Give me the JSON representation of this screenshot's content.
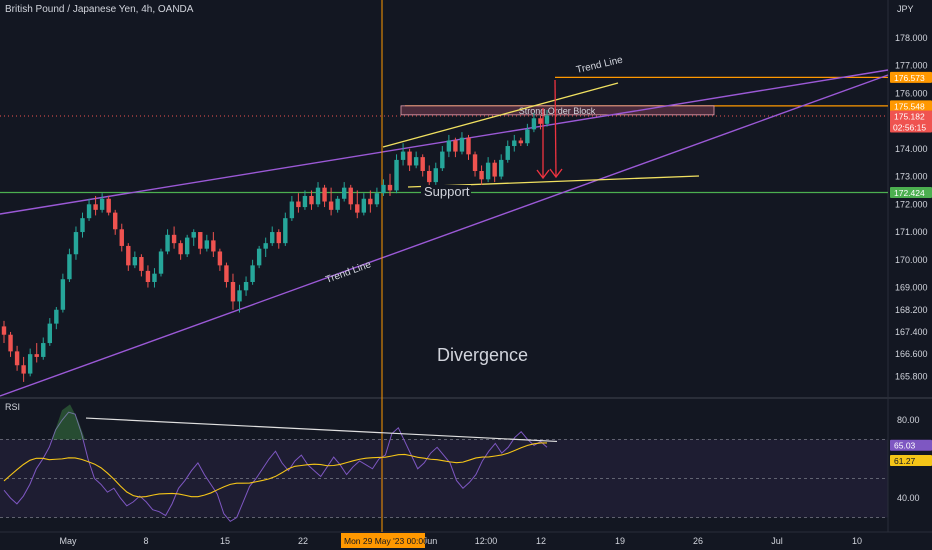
{
  "header": {
    "symbol_title": "British Pound / Japanese Yen, 4h, OANDA",
    "currency": "JPY"
  },
  "colors": {
    "background": "#131722",
    "up": "#26a69a",
    "down": "#ef5350",
    "channel": "#9b59d6",
    "wedge": "#f0e060",
    "support": "#4caf50",
    "cursor": "#ff9800",
    "order_block": "#5c3344",
    "rsi": "#7e57c2",
    "rsi_ma": "#f5c518",
    "arrow": "#ef3340"
  },
  "chart_data": [
    {
      "type": "candlestick",
      "title": "British Pound / Japanese Yen, 4h, OANDA",
      "ylim": [
        165.5,
        178.9
      ],
      "y_ticks": [
        "178.000",
        "177.000",
        "176.000",
        "175.000",
        "174.000",
        "173.000",
        "172.000",
        "171.000",
        "170.000",
        "169.000",
        "168.200",
        "167.400",
        "166.600",
        "165.800"
      ],
      "x_ticks": [
        "May",
        "8",
        "15",
        "22",
        "Jun",
        "12:00",
        "12",
        "19",
        "26",
        "Jul",
        "10"
      ],
      "price_labels": [
        {
          "value": 176.573,
          "text": "176.573",
          "color": "#ff9800"
        },
        {
          "value": 175.548,
          "text": "175.548",
          "color": "#ff9800"
        },
        {
          "value": 175.182,
          "text": "175.182",
          "sub": "02:56:15",
          "color": "#ef5350"
        },
        {
          "value": 172.424,
          "text": "172.424",
          "color": "#4caf50"
        }
      ],
      "annotations": {
        "trend_line_upper": "Trend Line",
        "trend_line_lower": "Trend Line",
        "order_block": "Strong Order Block",
        "support": "Support",
        "divergence": "Divergence"
      },
      "cursor_label": "Mon 29 May '23   00:00",
      "candles": [
        [
          167.6,
          167.8,
          167.0,
          167.3
        ],
        [
          167.3,
          167.4,
          166.5,
          166.7
        ],
        [
          166.7,
          166.9,
          166.0,
          166.2
        ],
        [
          166.2,
          166.5,
          165.6,
          165.9
        ],
        [
          165.9,
          166.8,
          165.8,
          166.6
        ],
        [
          166.6,
          167.0,
          166.3,
          166.5
        ],
        [
          166.5,
          167.2,
          166.4,
          167.0
        ],
        [
          167.0,
          167.9,
          166.9,
          167.7
        ],
        [
          167.7,
          168.3,
          167.5,
          168.2
        ],
        [
          168.2,
          169.5,
          168.1,
          169.3
        ],
        [
          169.3,
          170.4,
          169.2,
          170.2
        ],
        [
          170.2,
          171.2,
          170.0,
          171.0
        ],
        [
          171.0,
          171.7,
          170.8,
          171.5
        ],
        [
          171.5,
          172.2,
          171.4,
          172.0
        ],
        [
          172.0,
          172.3,
          171.6,
          171.8
        ],
        [
          171.8,
          172.4,
          171.7,
          172.2
        ],
        [
          172.2,
          172.3,
          171.6,
          171.7
        ],
        [
          171.7,
          171.8,
          170.9,
          171.1
        ],
        [
          171.1,
          171.3,
          170.3,
          170.5
        ],
        [
          170.5,
          170.6,
          169.6,
          169.8
        ],
        [
          169.8,
          170.3,
          169.7,
          170.1
        ],
        [
          170.1,
          170.2,
          169.4,
          169.6
        ],
        [
          169.6,
          169.8,
          169.0,
          169.2
        ],
        [
          169.2,
          169.7,
          169.0,
          169.5
        ],
        [
          169.5,
          170.4,
          169.4,
          170.3
        ],
        [
          170.3,
          171.1,
          170.2,
          170.9
        ],
        [
          170.9,
          171.2,
          170.4,
          170.6
        ],
        [
          170.6,
          170.7,
          170.0,
          170.2
        ],
        [
          170.2,
          170.9,
          170.1,
          170.8
        ],
        [
          170.8,
          171.1,
          170.5,
          171.0
        ],
        [
          171.0,
          171.0,
          170.2,
          170.4
        ],
        [
          170.4,
          170.9,
          170.3,
          170.7
        ],
        [
          170.7,
          171.0,
          170.1,
          170.3
        ],
        [
          170.3,
          170.4,
          169.6,
          169.8
        ],
        [
          169.8,
          169.9,
          169.0,
          169.2
        ],
        [
          169.2,
          169.5,
          168.2,
          168.5
        ],
        [
          168.5,
          169.1,
          168.1,
          168.9
        ],
        [
          168.9,
          169.4,
          168.7,
          169.2
        ],
        [
          169.2,
          170.0,
          169.1,
          169.8
        ],
        [
          169.8,
          170.5,
          169.7,
          170.4
        ],
        [
          170.4,
          170.8,
          170.1,
          170.6
        ],
        [
          170.6,
          171.2,
          170.5,
          171.0
        ],
        [
          171.0,
          171.1,
          170.4,
          170.6
        ],
        [
          170.6,
          171.7,
          170.5,
          171.5
        ],
        [
          171.5,
          172.3,
          171.4,
          172.1
        ],
        [
          172.1,
          172.4,
          171.7,
          171.9
        ],
        [
          171.9,
          172.5,
          171.8,
          172.3
        ],
        [
          172.3,
          172.5,
          171.8,
          172.0
        ],
        [
          172.0,
          172.8,
          171.9,
          172.6
        ],
        [
          172.6,
          172.7,
          171.9,
          172.1
        ],
        [
          172.1,
          172.6,
          171.6,
          171.8
        ],
        [
          171.8,
          172.3,
          171.7,
          172.2
        ],
        [
          172.2,
          172.8,
          172.1,
          172.6
        ],
        [
          172.6,
          172.7,
          171.8,
          172.0
        ],
        [
          172.0,
          172.5,
          171.5,
          171.7
        ],
        [
          171.7,
          172.4,
          171.6,
          172.2
        ],
        [
          172.2,
          172.5,
          171.7,
          172.0
        ],
        [
          172.0,
          172.6,
          171.9,
          172.4
        ],
        [
          172.4,
          172.9,
          172.3,
          172.7
        ],
        [
          172.7,
          173.1,
          172.3,
          172.5
        ],
        [
          172.5,
          173.8,
          172.4,
          173.6
        ],
        [
          173.6,
          174.2,
          173.4,
          173.9
        ],
        [
          173.9,
          174.0,
          173.2,
          173.4
        ],
        [
          173.4,
          173.9,
          173.3,
          173.7
        ],
        [
          173.7,
          173.8,
          173.0,
          173.2
        ],
        [
          173.2,
          173.4,
          172.6,
          172.8
        ],
        [
          172.8,
          173.5,
          172.7,
          173.3
        ],
        [
          173.3,
          174.1,
          173.2,
          173.9
        ],
        [
          173.9,
          174.5,
          173.7,
          174.3
        ],
        [
          174.3,
          174.4,
          173.7,
          173.9
        ],
        [
          173.9,
          174.6,
          173.8,
          174.4
        ],
        [
          174.4,
          174.5,
          173.6,
          173.8
        ],
        [
          173.8,
          173.9,
          173.0,
          173.2
        ],
        [
          173.2,
          173.4,
          172.7,
          172.9
        ],
        [
          172.9,
          173.7,
          172.8,
          173.5
        ],
        [
          173.5,
          173.6,
          172.8,
          173.0
        ],
        [
          173.0,
          173.8,
          172.9,
          173.6
        ],
        [
          173.6,
          174.3,
          173.5,
          174.1
        ],
        [
          174.1,
          174.5,
          173.9,
          174.3
        ],
        [
          174.3,
          174.4,
          174.1,
          174.2
        ],
        [
          174.2,
          174.9,
          174.1,
          174.7
        ],
        [
          174.7,
          175.3,
          174.6,
          175.1
        ],
        [
          175.1,
          175.2,
          174.7,
          174.9
        ],
        [
          174.9,
          175.4,
          174.8,
          175.2
        ]
      ]
    },
    {
      "type": "line",
      "title": "RSI",
      "ylim": [
        18,
        92
      ],
      "y_ticks": [
        "80.00",
        "40.00"
      ],
      "price_labels": [
        {
          "value": 65.03,
          "text": "65.03",
          "color": "#7e57c2"
        },
        {
          "value": 61.27,
          "text": "61.27",
          "color": "#f5c518"
        }
      ],
      "rsi": [
        44,
        40,
        37,
        41,
        47,
        55,
        60,
        66,
        75,
        80,
        84,
        83,
        73,
        60,
        50,
        47,
        43,
        45,
        40,
        36,
        38,
        41,
        38,
        34,
        33,
        31,
        37,
        45,
        49,
        54,
        58,
        52,
        47,
        42,
        32,
        28,
        30,
        38,
        46,
        50,
        55,
        60,
        64,
        58,
        54,
        59,
        62,
        57,
        54,
        51,
        56,
        61,
        57,
        52,
        56,
        59,
        57,
        55,
        60,
        62,
        73,
        76,
        69,
        62,
        55,
        58,
        63,
        66,
        62,
        58,
        49,
        45,
        48,
        52,
        59,
        64,
        68,
        63,
        66,
        71,
        74,
        70,
        67,
        69,
        66
      ]
    }
  ]
}
